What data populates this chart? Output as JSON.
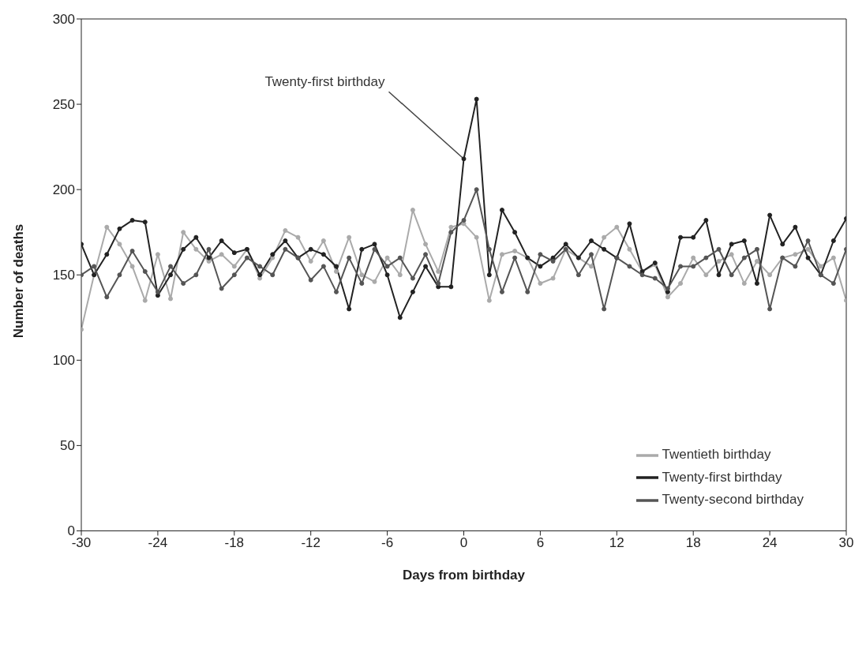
{
  "chart_data": {
    "type": "line",
    "xlabel": "Days from birthday",
    "ylabel": "Number of deaths",
    "x": [
      -30,
      -29,
      -28,
      -27,
      -26,
      -25,
      -24,
      -23,
      -22,
      -21,
      -20,
      -19,
      -18,
      -17,
      -16,
      -15,
      -14,
      -13,
      -12,
      -11,
      -10,
      -9,
      -8,
      -7,
      -6,
      -5,
      -4,
      -3,
      -2,
      -1,
      0,
      1,
      2,
      3,
      4,
      5,
      6,
      7,
      8,
      9,
      10,
      11,
      12,
      13,
      14,
      15,
      16,
      17,
      18,
      19,
      20,
      21,
      22,
      23,
      24,
      25,
      26,
      27,
      28,
      29,
      30
    ],
    "series": [
      {
        "name": "Twentieth birthday",
        "color": "#aaaaaa",
        "values": [
          118,
          150,
          178,
          168,
          155,
          135,
          162,
          136,
          175,
          165,
          158,
          162,
          155,
          165,
          148,
          160,
          176,
          172,
          158,
          170,
          152,
          172,
          150,
          146,
          160,
          150,
          188,
          168,
          152,
          178,
          180,
          172,
          135,
          162,
          164,
          160,
          145,
          148,
          165,
          160,
          155,
          172,
          178,
          165,
          152,
          156,
          137,
          145,
          160,
          150,
          158,
          162,
          145,
          158,
          150,
          160,
          162,
          165,
          155,
          160,
          135
        ]
      },
      {
        "name": "Twenty-first birthday",
        "color": "#222222",
        "values": [
          168,
          150,
          162,
          177,
          182,
          181,
          138,
          150,
          165,
          172,
          160,
          170,
          163,
          165,
          150,
          162,
          170,
          160,
          165,
          162,
          155,
          130,
          165,
          168,
          150,
          125,
          140,
          155,
          143,
          143,
          218,
          253,
          150,
          188,
          175,
          160,
          155,
          160,
          168,
          160,
          170,
          165,
          160,
          180,
          152,
          157,
          140,
          172,
          172,
          182,
          150,
          168,
          170,
          145,
          185,
          168,
          178,
          160,
          150,
          170,
          183
        ]
      },
      {
        "name": "Twenty-second birthday",
        "color": "#555555",
        "values": [
          150,
          155,
          137,
          150,
          164,
          152,
          140,
          155,
          145,
          150,
          165,
          142,
          150,
          160,
          155,
          150,
          165,
          160,
          147,
          155,
          140,
          160,
          145,
          165,
          155,
          160,
          148,
          162,
          145,
          175,
          182,
          200,
          165,
          140,
          160,
          140,
          162,
          158,
          165,
          150,
          162,
          130,
          160,
          155,
          150,
          148,
          142,
          155,
          155,
          160,
          165,
          150,
          160,
          165,
          130,
          160,
          155,
          170,
          150,
          145,
          165
        ]
      }
    ],
    "xlim": [
      -30,
      30
    ],
    "xticks": [
      -30,
      -24,
      -18,
      -12,
      -6,
      0,
      6,
      12,
      18,
      24,
      30
    ],
    "ylim": [
      0,
      300
    ],
    "yticks": [
      0,
      50,
      100,
      150,
      200,
      250,
      300
    ],
    "grid": false,
    "legend": "bottom right",
    "marker": "circle",
    "line_style": "solid",
    "annotations": [
      {
        "text": "Twenty-first birthday",
        "x": 0,
        "y": 218
      }
    ]
  }
}
